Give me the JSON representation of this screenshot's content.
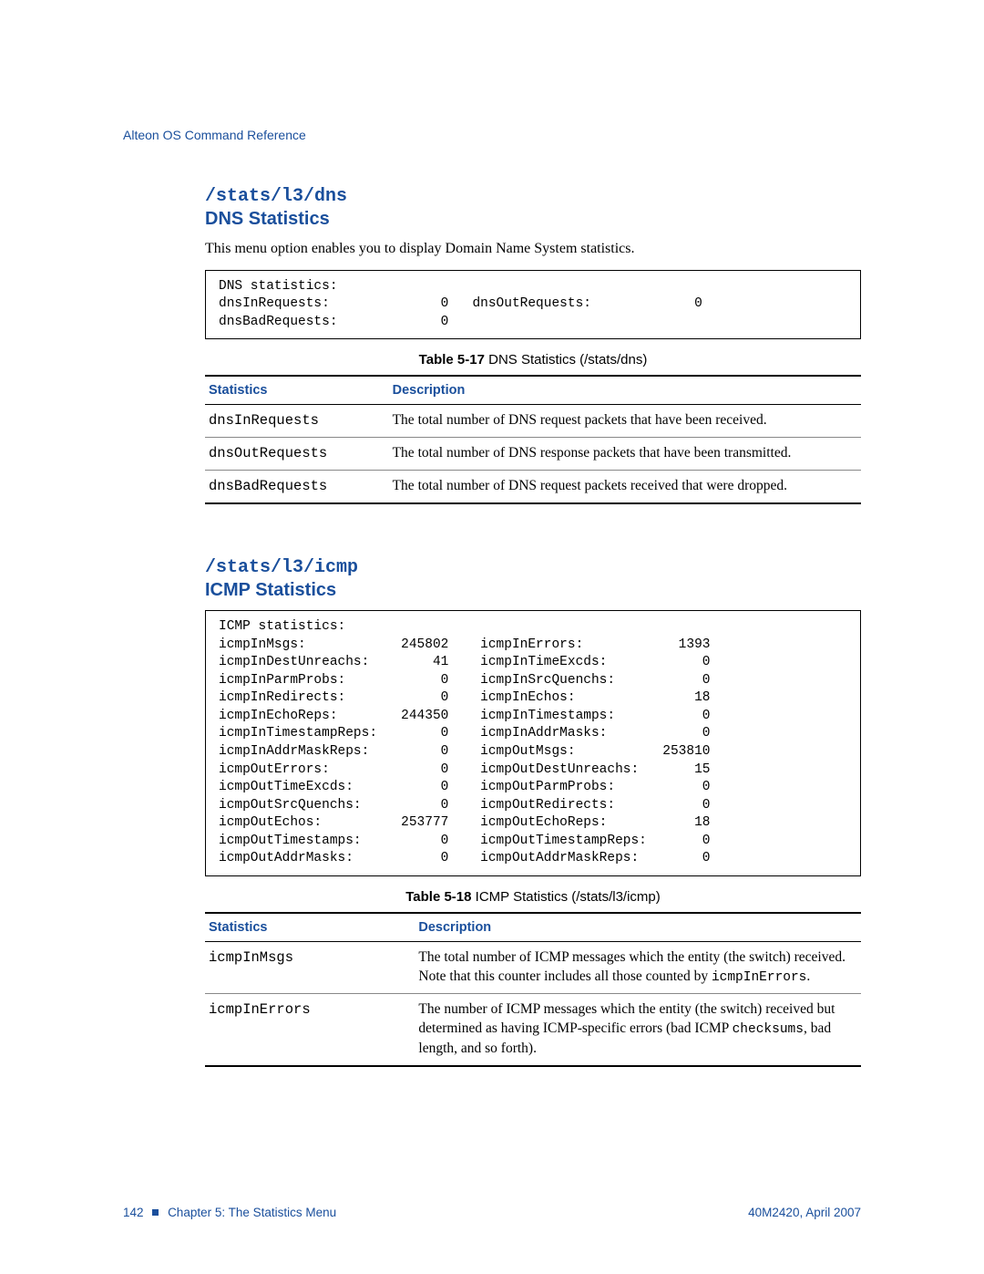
{
  "header": {
    "doc_title": "Alteon OS Command Reference"
  },
  "dns_section": {
    "path": "/stats/l3/dns",
    "title": "DNS Statistics",
    "intro": "This menu option enables you to display Domain Name System statistics.",
    "code_box": "DNS statistics:\ndnsInRequests:              0   dnsOutRequests:             0\ndnsBadRequests:             0",
    "table_caption_bold": "Table 5-17",
    "table_caption_rest": "  DNS Statistics (/stats/dns)",
    "col_headers": {
      "stat": "Statistics",
      "desc": "Description"
    },
    "rows": [
      {
        "stat": "dnsInRequests",
        "desc": "The total number of DNS request packets that have been received."
      },
      {
        "stat": "dnsOutRequests",
        "desc": "The total number of DNS response packets that have been transmitted."
      },
      {
        "stat": "dnsBadRequests",
        "desc": "The total number of DNS request packets received that were dropped."
      }
    ]
  },
  "icmp_section": {
    "path": "/stats/l3/icmp",
    "title": "ICMP Statistics",
    "code_box": "ICMP statistics:\nicmpInMsgs:            245802    icmpInErrors:            1393\nicmpInDestUnreachs:        41    icmpInTimeExcds:            0\nicmpInParmProbs:            0    icmpInSrcQuenchs:           0\nicmpInRedirects:            0    icmpInEchos:               18\nicmpInEchoReps:        244350    icmpInTimestamps:           0\nicmpInTimestampReps:        0    icmpInAddrMasks:            0\nicmpInAddrMaskReps:         0    icmpOutMsgs:           253810\nicmpOutErrors:              0    icmpOutDestUnreachs:       15\nicmpOutTimeExcds:           0    icmpOutParmProbs:           0\nicmpOutSrcQuenchs:          0    icmpOutRedirects:           0\nicmpOutEchos:          253777    icmpOutEchoReps:           18\nicmpOutTimestamps:          0    icmpOutTimestampReps:       0\nicmpOutAddrMasks:           0    icmpOutAddrMaskReps:        0",
    "table_caption_bold": "Table 5-18",
    "table_caption_rest": "  ICMP Statistics (/stats/l3/icmp)",
    "col_headers": {
      "stat": "Statistics",
      "desc": "Description"
    },
    "rows": [
      {
        "stat": "icmpInMsgs",
        "desc_pre": "The total number of ICMP messages which the entity (the switch) received. Note that this counter includes all those counted by ",
        "desc_code": "icmpInErrors",
        "desc_post": "."
      },
      {
        "stat": "icmpInErrors",
        "desc_pre": "The number of ICMP messages which the entity (the switch) received but determined as having ICMP-specific errors (bad ICMP ",
        "desc_code": "checksums",
        "desc_post": ", bad length, and so forth)."
      }
    ]
  },
  "footer": {
    "page_num": "142",
    "chapter": "Chapter 5:  The Statistics Menu",
    "doc_id": "40M2420, April 2007"
  },
  "colors": {
    "brand_blue": "#1a4f9c",
    "text_black": "#000000",
    "rule_gray": "#888888",
    "background": "#ffffff"
  }
}
